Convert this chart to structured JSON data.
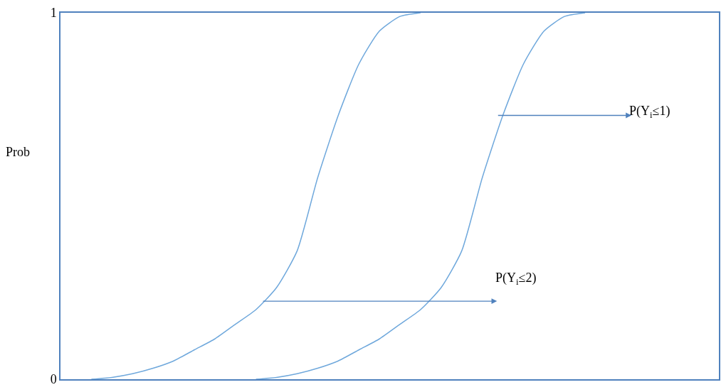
{
  "chart_data": {
    "type": "line",
    "ylabel": "Prob",
    "categories": [
      null,
      null,
      null,
      null,
      null,
      null,
      null,
      null,
      null,
      null,
      null,
      null,
      null,
      null,
      null,
      null,
      null,
      null,
      null,
      null,
      null,
      null,
      null,
      null,
      null,
      null,
      null,
      null,
      null,
      null,
      null,
      null
    ],
    "series": [
      {
        "color": "#6fa8dc",
        "values": [
          null,
          0.0,
          0.005,
          0.015,
          0.03,
          0.05,
          0.08,
          0.11,
          0.15,
          0.19,
          0.25,
          0.35,
          0.55,
          0.72,
          0.86,
          0.95,
          0.99,
          1.0,
          null,
          null,
          null,
          null,
          null,
          null,
          null,
          null,
          null,
          null,
          null,
          null,
          null,
          null
        ]
      },
      {
        "color": "#6fa8dc",
        "values": [
          null,
          null,
          null,
          null,
          null,
          null,
          null,
          null,
          null,
          0.0,
          0.005,
          0.015,
          0.03,
          0.05,
          0.08,
          0.11,
          0.15,
          0.19,
          0.25,
          0.35,
          0.55,
          0.72,
          0.86,
          0.95,
          0.99,
          1.0,
          null,
          null,
          null,
          null,
          null,
          null
        ]
      }
    ],
    "ylim": [
      0,
      1
    ],
    "yticks": [
      0,
      1
    ],
    "tick_labels": "y",
    "annotations": [
      "P(Y$_{i}$≤1)",
      "P(Y$_{i}$≤2)"
    ]
  }
}
